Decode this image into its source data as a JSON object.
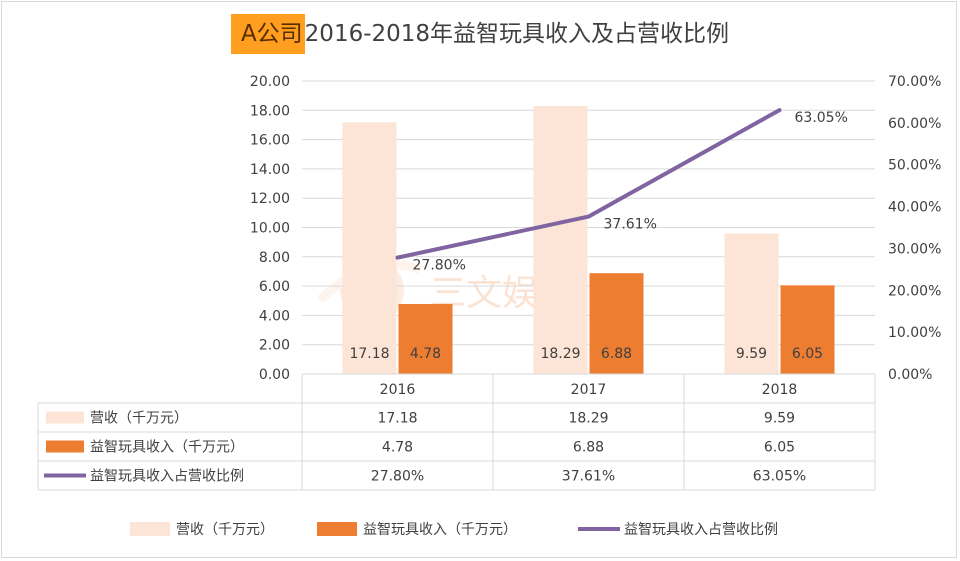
{
  "title": {
    "company": "A公司",
    "rest": "2016-2018年益智玩具收入及占营收比例"
  },
  "watermark": {
    "text": "三文娱"
  },
  "chart_data": {
    "type": "bar",
    "title": "A公司2016-2018年益智玩具收入及占营收比例",
    "categories": [
      "2016",
      "2017",
      "2018"
    ],
    "series": [
      {
        "name": "营收（千万元）",
        "kind": "bar",
        "axis": "left",
        "color": "#fce4d6",
        "values": [
          17.18,
          18.29,
          9.59
        ],
        "labels": [
          "17.18",
          "18.29",
          "9.59"
        ]
      },
      {
        "name": "益智玩具收入（千万元）",
        "kind": "bar",
        "axis": "left",
        "color": "#ed7d31",
        "values": [
          4.78,
          6.88,
          6.05
        ],
        "labels": [
          "4.78",
          "6.88",
          "6.05"
        ]
      },
      {
        "name": "益智玩具收入占营收比例",
        "kind": "line",
        "axis": "right",
        "color": "#8064a2",
        "values": [
          27.8,
          37.61,
          63.05
        ],
        "labels": [
          "27.80%",
          "37.61%",
          "63.05%"
        ]
      }
    ],
    "ylim": [
      0,
      20
    ],
    "yticks": [
      "0.00",
      "2.00",
      "4.00",
      "6.00",
      "8.00",
      "10.00",
      "12.00",
      "14.00",
      "16.00",
      "18.00",
      "20.00"
    ],
    "y2lim": [
      0,
      70
    ],
    "y2ticks": [
      "0.00%",
      "10.00%",
      "20.00%",
      "30.00%",
      "40.00%",
      "50.00%",
      "60.00%",
      "70.00%"
    ],
    "data_table": {
      "rows": [
        {
          "label": "营收（千万元）",
          "values": [
            "17.18",
            "18.29",
            "9.59"
          ]
        },
        {
          "label": "益智玩具收入（千万元）",
          "values": [
            "4.78",
            "6.88",
            "6.05"
          ]
        },
        {
          "label": "益智玩具收入占营收比例",
          "values": [
            "27.80%",
            "37.61%",
            "63.05%"
          ]
        }
      ]
    },
    "legend": [
      "营收（千万元）",
      "益智玩具收入（千万元）",
      "益智玩具收入占营收比例"
    ],
    "legend_position": "bottom",
    "grid": true
  }
}
